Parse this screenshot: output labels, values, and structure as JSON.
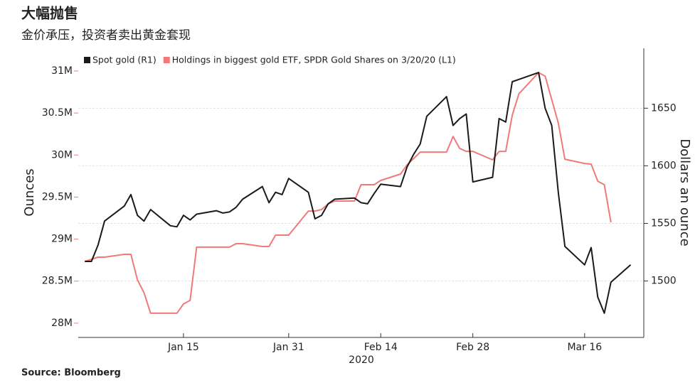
{
  "chart_data": {
    "type": "line",
    "title": "大幅抛售",
    "subtitle": "金价承压，投资者卖出黄金套现",
    "source": "Source: Bloomberg",
    "xlabel": "2020",
    "ylabel": "Ounces",
    "y2label": "Dollars an ounce",
    "x": [
      "2019-12-31",
      "2020-01-01",
      "2020-01-02",
      "2020-01-03",
      "2020-01-06",
      "2020-01-07",
      "2020-01-08",
      "2020-01-09",
      "2020-01-10",
      "2020-01-13",
      "2020-01-14",
      "2020-01-15",
      "2020-01-16",
      "2020-01-17",
      "2020-01-20",
      "2020-01-21",
      "2020-01-22",
      "2020-01-23",
      "2020-01-24",
      "2020-01-27",
      "2020-01-28",
      "2020-01-29",
      "2020-01-30",
      "2020-01-31",
      "2020-02-03",
      "2020-02-04",
      "2020-02-05",
      "2020-02-06",
      "2020-02-07",
      "2020-02-10",
      "2020-02-11",
      "2020-02-12",
      "2020-02-13",
      "2020-02-14",
      "2020-02-17",
      "2020-02-18",
      "2020-02-19",
      "2020-02-20",
      "2020-02-21",
      "2020-02-24",
      "2020-02-25",
      "2020-02-26",
      "2020-02-27",
      "2020-02-28",
      "2020-03-02",
      "2020-03-03",
      "2020-03-04",
      "2020-03-05",
      "2020-03-06",
      "2020-03-09",
      "2020-03-10",
      "2020-03-11",
      "2020-03-12",
      "2020-03-13",
      "2020-03-16",
      "2020-03-17",
      "2020-03-18",
      "2020-03-19",
      "2020-03-20",
      "2020-03-23"
    ],
    "series": [
      {
        "name": "Spot gold (R1)",
        "color": "#1a1a1a",
        "axis": "y2",
        "values": [
          1517,
          1517,
          1531,
          1552,
          1565,
          1575,
          1557,
          1552,
          1562,
          1548,
          1547,
          1557,
          1553,
          1558,
          1561,
          1559,
          1560,
          1564,
          1571,
          1582,
          1568,
          1577,
          1575,
          1589,
          1577,
          1554,
          1557,
          1567,
          1571,
          1572,
          1568,
          1567,
          1576,
          1584,
          1582,
          1599,
          1610,
          1619,
          1643,
          1660,
          1635,
          1641,
          1645,
          1586,
          1590,
          1641,
          1638,
          1673,
          1675,
          1681,
          1650,
          1635,
          1577,
          1530,
          1514,
          1529,
          1486,
          1472,
          1499,
          1514
        ]
      },
      {
        "name": "Holdings in biggest gold ETF, SPDR Gold Shares on 3/20/20 (L1)",
        "color": "#f07a7a",
        "axis": "y",
        "values": [
          28735000,
          28760000,
          28785000,
          28785000,
          28819000,
          28819000,
          28515000,
          28363000,
          28118000,
          28118000,
          28118000,
          28228000,
          28270000,
          28904000,
          28904000,
          28904000,
          28904000,
          28946000,
          28946000,
          28912000,
          28912000,
          29047000,
          29047000,
          29047000,
          29334000,
          29334000,
          29351000,
          29419000,
          29453000,
          29453000,
          29647000,
          29647000,
          29647000,
          29698000,
          29774000,
          29883000,
          29959000,
          30035000,
          30035000,
          30035000,
          30221000,
          30078000,
          30044000,
          30044000,
          29943000,
          30044000,
          30044000,
          30475000,
          30728000,
          30981000,
          30939000,
          30660000,
          30382000,
          29951000,
          29900000,
          29892000,
          29689000,
          29647000,
          29199000,
          null
        ]
      }
    ],
    "xlim": [
      "2019-12-30",
      "2020-03-25"
    ],
    "xticks": [
      {
        "value": "2020-01-15",
        "label": "Jan 15"
      },
      {
        "value": "2020-01-31",
        "label": "Jan 31"
      },
      {
        "value": "2020-02-14",
        "label": "Feb 14"
      },
      {
        "value": "2020-02-28",
        "label": "Feb 28"
      },
      {
        "value": "2020-03-16",
        "label": "Mar 16"
      }
    ],
    "ylim": [
      27830000,
      31270000
    ],
    "yticks": [
      {
        "value": 28000000,
        "label": "28M"
      },
      {
        "value": 28500000,
        "label": "28.5M"
      },
      {
        "value": 29000000,
        "label": "29M"
      },
      {
        "value": 29500000,
        "label": "29.5M"
      },
      {
        "value": 30000000,
        "label": "30M"
      },
      {
        "value": 30500000,
        "label": "30.5M"
      },
      {
        "value": 31000000,
        "label": "31M"
      }
    ],
    "y2lim": [
      1451,
      1702
    ],
    "y2ticks": [
      1500,
      1550,
      1600,
      1650
    ],
    "grid": true,
    "legend": "top-left"
  }
}
